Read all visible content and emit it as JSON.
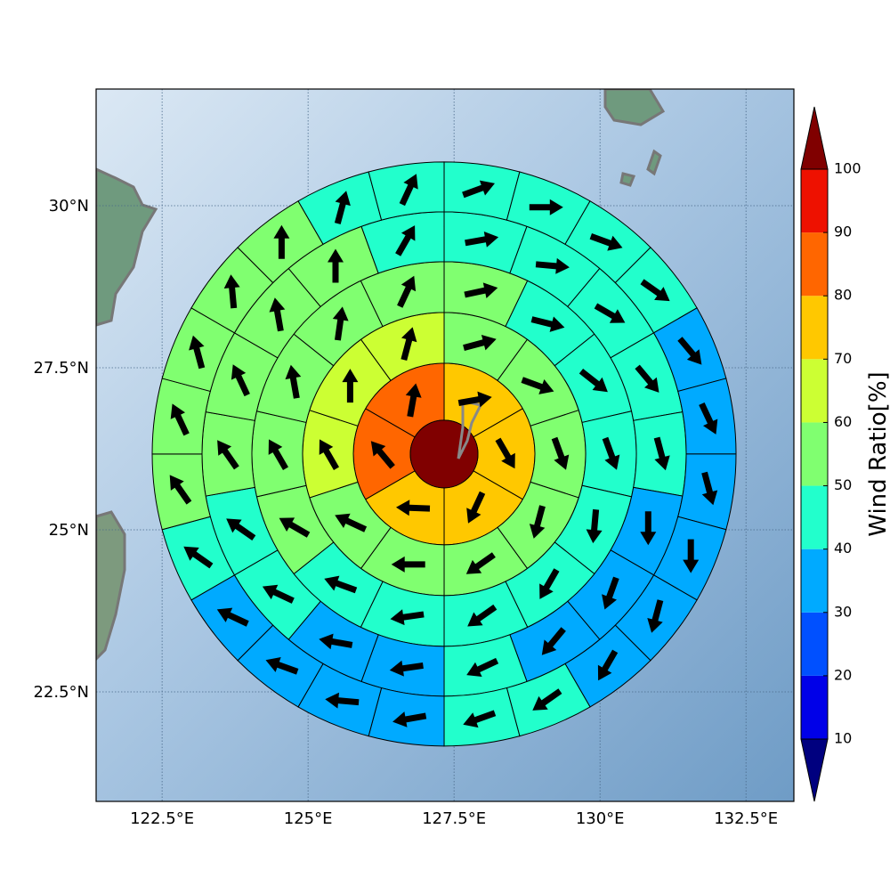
{
  "chart_data": {
    "type": "wind-rings",
    "xlim": [
      121.37,
      133.32
    ],
    "ylim": [
      20.81,
      31.8
    ],
    "xticks": [
      {
        "value": 122.5,
        "label": "122.5°E"
      },
      {
        "value": 125,
        "label": "125°E"
      },
      {
        "value": 127.5,
        "label": "127.5°E"
      },
      {
        "value": 130,
        "label": "130°E"
      },
      {
        "value": 132.5,
        "label": "132.5°E"
      }
    ],
    "yticks": [
      {
        "value": 22.5,
        "label": "22.5°N"
      },
      {
        "value": 25,
        "label": "25°N"
      },
      {
        "value": 27.5,
        "label": "27.5°N"
      },
      {
        "value": 30,
        "label": "30°N"
      }
    ],
    "grid": true,
    "center": [
      127.33,
      26.17
    ],
    "center_value": 105,
    "rings": [
      {
        "values": [
          75,
          75,
          75,
          75,
          85,
          85
        ],
        "directions": [
          80,
          150,
          205,
          272,
          320,
          10
        ]
      },
      {
        "values": [
          55,
          55,
          55,
          55,
          55,
          55,
          55,
          65,
          65,
          65
        ],
        "directions": [
          75,
          110,
          160,
          195,
          235,
          270,
          295,
          330,
          0,
          15
        ]
      },
      {
        "values": [
          55,
          45,
          45,
          45,
          45,
          45,
          45,
          45,
          45,
          55,
          55,
          55,
          55,
          55
        ],
        "directions": [
          78,
          104,
          128,
          160,
          185,
          210,
          235,
          262,
          290,
          300,
          330,
          350,
          8,
          25
        ]
      },
      {
        "values": [
          45,
          45,
          45,
          45,
          45,
          35,
          35,
          35,
          45,
          35,
          35,
          45,
          45,
          55,
          55,
          55,
          55,
          45
        ],
        "directions": [
          80,
          95,
          120,
          140,
          165,
          180,
          200,
          220,
          245,
          262,
          280,
          295,
          305,
          325,
          335,
          350,
          0,
          30
        ]
      },
      {
        "values": [
          45,
          45,
          45,
          45,
          35,
          35,
          35,
          35,
          35,
          35,
          45,
          45,
          35,
          35,
          35,
          35,
          45,
          55,
          55,
          55,
          55,
          55,
          45,
          45
        ],
        "directions": [
          70,
          90,
          110,
          125,
          140,
          155,
          165,
          180,
          195,
          210,
          235,
          250,
          260,
          275,
          290,
          295,
          305,
          325,
          335,
          345,
          355,
          0,
          15,
          25
        ]
      }
    ],
    "colorbar": {
      "label": "Wind Ratio[%]",
      "levels": [
        10,
        20,
        30,
        40,
        50,
        60,
        70,
        80,
        90,
        100
      ],
      "colors": [
        "#00007f",
        "#0000e8",
        "#0050ff",
        "#00aaff",
        "#22ffcc",
        "#80ff70",
        "#ccff33",
        "#ffc800",
        "#ff6600",
        "#ee1100",
        "#800000"
      ]
    }
  }
}
